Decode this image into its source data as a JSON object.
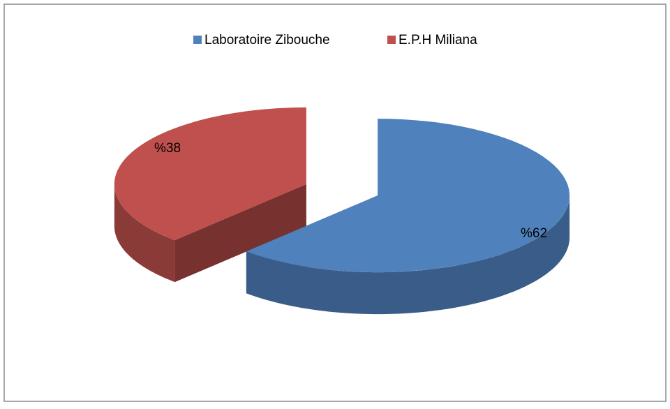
{
  "chart_data": {
    "type": "pie3d",
    "categories": [
      "Laboratoire Zibouche",
      "E.P.H Miliana"
    ],
    "values": [
      62,
      38
    ],
    "value_labels": [
      "%62",
      "%38"
    ],
    "colors": [
      "#4f81bd",
      "#c0504d"
    ],
    "legend": "top"
  }
}
